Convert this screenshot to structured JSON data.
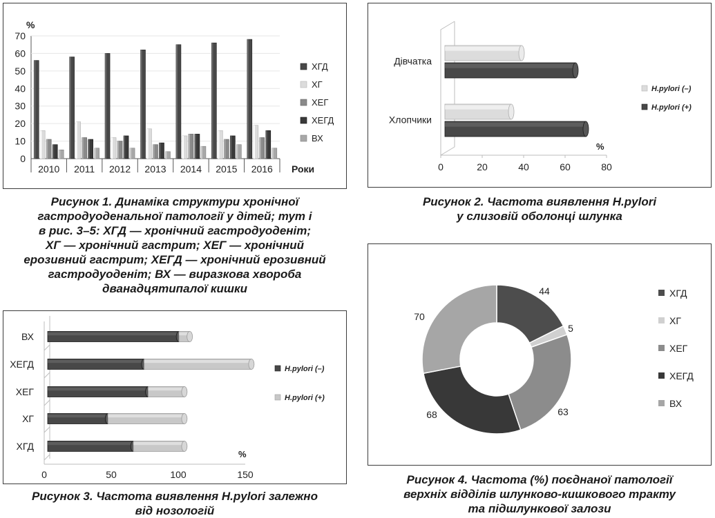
{
  "colors": {
    "dark": "#484848",
    "light": "#dcdcdc",
    "mid": "#8a8a8a",
    "darker": "#3a3a3a",
    "pale": "#a8a8a8",
    "grid": "#bdbdbd",
    "axis": "#555555"
  },
  "captions": {
    "fig1": [
      "Рисунок 1. Динаміка структури хронічної",
      "гастродуоденальної патології у дітей; тут і",
      "в рис. 3–5: ХГД — хронічний гастродуоденіт;",
      "ХГ — хронічний гастрит; ХЕГ — хронічний",
      "ерозивний гастрит; ХЕГД — хронічний ерозивний",
      "гастродуоденіт; ВХ — виразкова хвороба",
      "дванадцятипалої кишки"
    ],
    "fig2": [
      "Рисунок 2. Частота виявлення H.pylori",
      "у слизовій оболонці шлунка"
    ],
    "fig3": [
      "Рисунок 3. Частота виявлення H.pylori залежно",
      "від нозологій"
    ],
    "fig4": [
      "Рисунок 4. Частота (%) поєднаної патології",
      "верхніх відділів шлунково-кишкового тракту",
      "та підшлункової залози"
    ]
  },
  "chart_data": [
    {
      "id": "fig1",
      "type": "bar",
      "ylabel": "%",
      "xlabel": "Роки",
      "ylim": [
        0,
        70
      ],
      "yticks": [
        "0",
        "10",
        "20",
        "30",
        "40",
        "50",
        "60",
        "70"
      ],
      "categories": [
        "2010",
        "2011",
        "2012",
        "2013",
        "2014",
        "2015",
        "2016"
      ],
      "legend_position": "right",
      "series": [
        {
          "name": "ХГД",
          "color": "#484848",
          "values": [
            56,
            58,
            60,
            62,
            65,
            66,
            68
          ]
        },
        {
          "name": "ХГ",
          "color": "#dcdcdc",
          "values": [
            16,
            21,
            12,
            17,
            13,
            16,
            19
          ]
        },
        {
          "name": "ХЕГ",
          "color": "#8a8a8a",
          "values": [
            11,
            12,
            10,
            8,
            14,
            11,
            12
          ]
        },
        {
          "name": "ХЕГД",
          "color": "#3a3a3a",
          "values": [
            8,
            11,
            13,
            9,
            14,
            13,
            16
          ]
        },
        {
          "name": "ВХ",
          "color": "#a8a8a8",
          "values": [
            5,
            6,
            6,
            4,
            7,
            8,
            6
          ]
        }
      ]
    },
    {
      "id": "fig2",
      "type": "bar",
      "orientation": "horizontal",
      "unit": "%",
      "xlim": [
        0,
        80
      ],
      "xticks": [
        "0",
        "20",
        "40",
        "60",
        "80"
      ],
      "categories": [
        "Дівчатка",
        "Хлопчики"
      ],
      "legend_position": "right",
      "series": [
        {
          "name": "H.pylori (–)",
          "color": "#dcdcdc",
          "values": [
            37,
            32
          ]
        },
        {
          "name": "H.pylori (+)",
          "color": "#484848",
          "values": [
            63,
            68
          ]
        }
      ]
    },
    {
      "id": "fig3",
      "type": "bar",
      "orientation": "horizontal",
      "stacked": true,
      "unit": "%",
      "xlim": [
        0,
        150
      ],
      "xticks": [
        "0",
        "50",
        "100",
        "150"
      ],
      "categories": [
        "ВХ",
        "ХЕГД",
        "ХЕГ",
        "ХГ",
        "ХГД"
      ],
      "legend_position": "right",
      "series": [
        {
          "name": "H.pylori (–)",
          "color": "#484848",
          "values": [
            98,
            72,
            75,
            45,
            64
          ]
        },
        {
          "name": "H.pylori (+)",
          "color": "#c8c8c8",
          "values": [
            8,
            80,
            27,
            57,
            38
          ]
        }
      ]
    },
    {
      "id": "fig4",
      "type": "pie",
      "donut": true,
      "legend_position": "right",
      "labels": [
        "ХГД",
        "ХГ",
        "ХЕГ",
        "ХЕГД",
        "ВХ"
      ],
      "values": [
        44,
        5,
        63,
        68,
        70
      ],
      "colors": [
        "#4d4d4d",
        "#d0d0d0",
        "#8c8c8c",
        "#383838",
        "#a6a6a6"
      ]
    }
  ]
}
